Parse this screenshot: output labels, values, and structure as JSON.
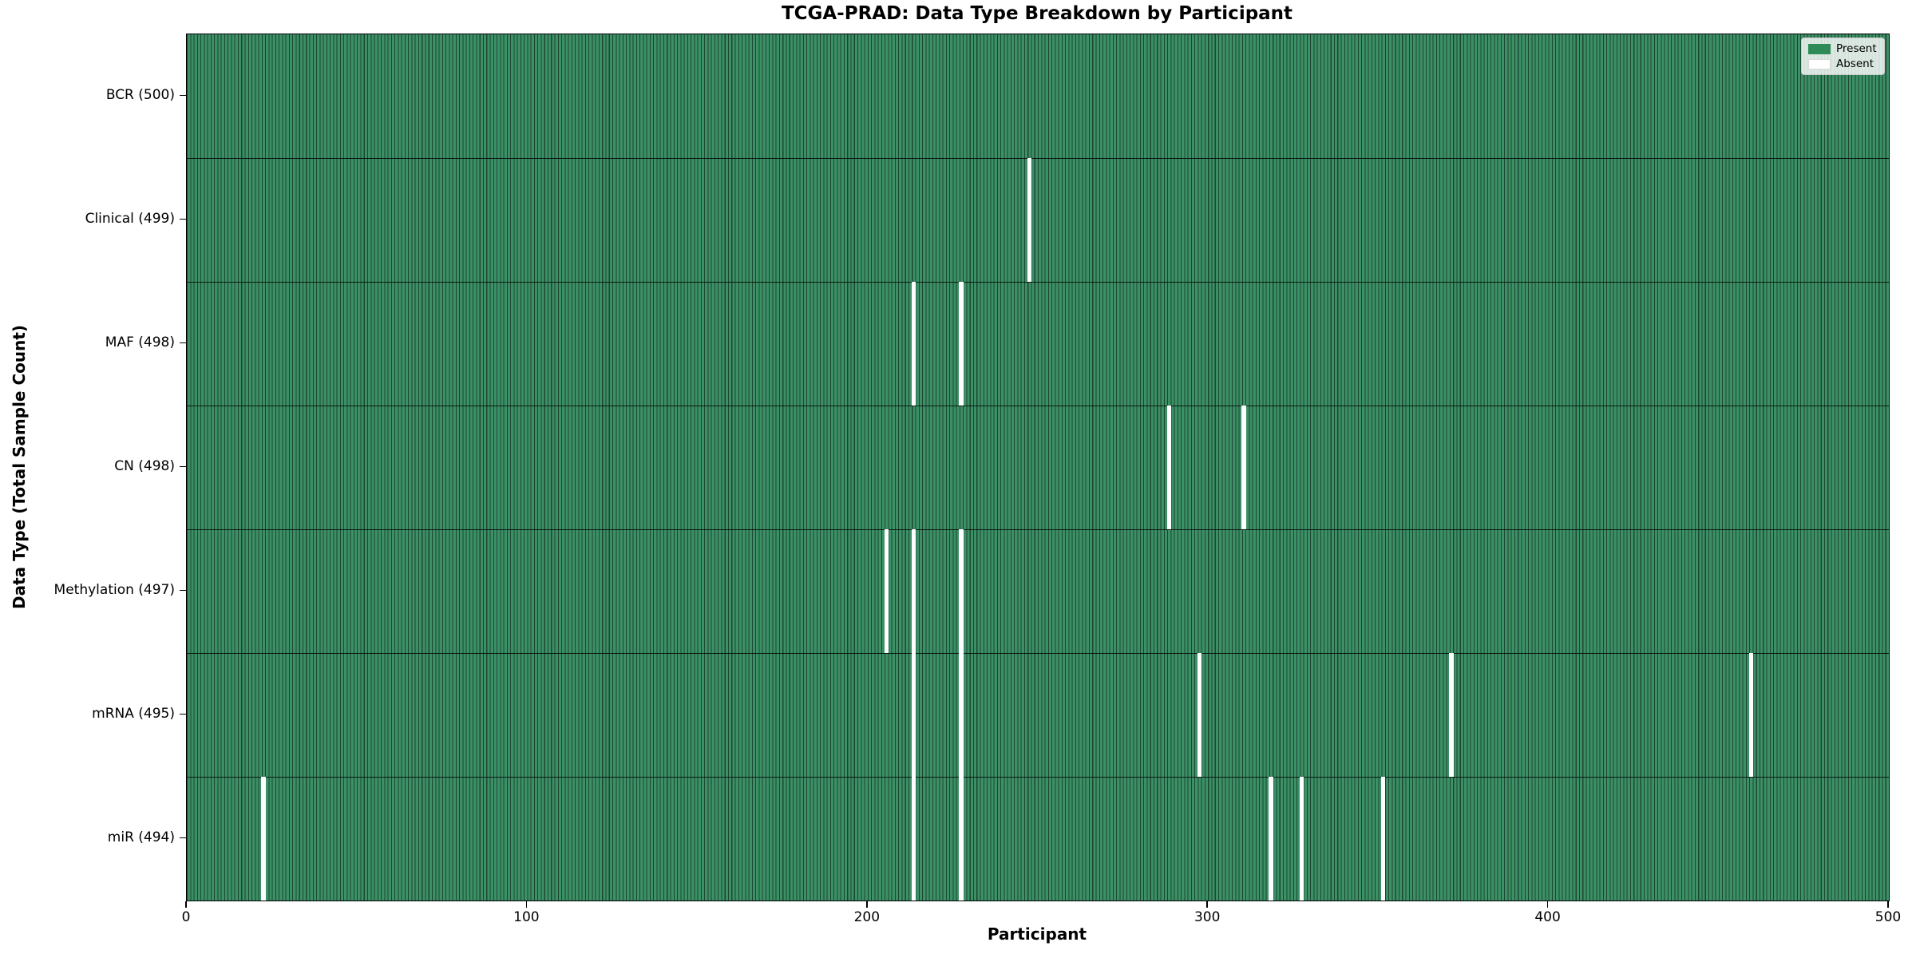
{
  "chart_data": {
    "type": "heatmap",
    "title": "TCGA-PRAD: Data Type Breakdown by Participant",
    "xlabel": "Participant",
    "ylabel": "Data Type (Total Sample Count)",
    "x_range": [
      0,
      500
    ],
    "x_ticks": [
      0,
      100,
      200,
      300,
      400,
      500
    ],
    "n_participants": 500,
    "grid": false,
    "legend": {
      "position": "upper right",
      "entries": [
        {
          "label": "Present",
          "color": "#2e8b57"
        },
        {
          "label": "Absent",
          "color": "#ffffff"
        }
      ]
    },
    "rows": [
      {
        "label": "BCR (500)",
        "data_type": "bcr",
        "total_present": 500,
        "absent_participants": []
      },
      {
        "label": "Clinical (499)",
        "data_type": "clinical",
        "total_present": 499,
        "absent_participants": [
          247
        ]
      },
      {
        "label": "MAF (498)",
        "data_type": "maf",
        "total_present": 498,
        "absent_participants": [
          213,
          227
        ]
      },
      {
        "label": "CN (498)",
        "data_type": "cn",
        "total_present": 498,
        "absent_participants": [
          288,
          310
        ]
      },
      {
        "label": "Methylation (497)",
        "data_type": "methylation",
        "total_present": 497,
        "absent_participants": [
          205,
          213,
          227
        ]
      },
      {
        "label": "mRNA (495)",
        "data_type": "mrna",
        "total_present": 495,
        "absent_participants": [
          213,
          227,
          297,
          371,
          459
        ]
      },
      {
        "label": "miR (494)",
        "data_type": "mir",
        "total_present": 494,
        "absent_participants": [
          22,
          213,
          227,
          318,
          327,
          351
        ]
      }
    ],
    "colors": {
      "present": "#2e8b57",
      "absent": "#ffffff",
      "bar_fill": "#3c9066",
      "bar_edge": "#1d4632"
    }
  }
}
